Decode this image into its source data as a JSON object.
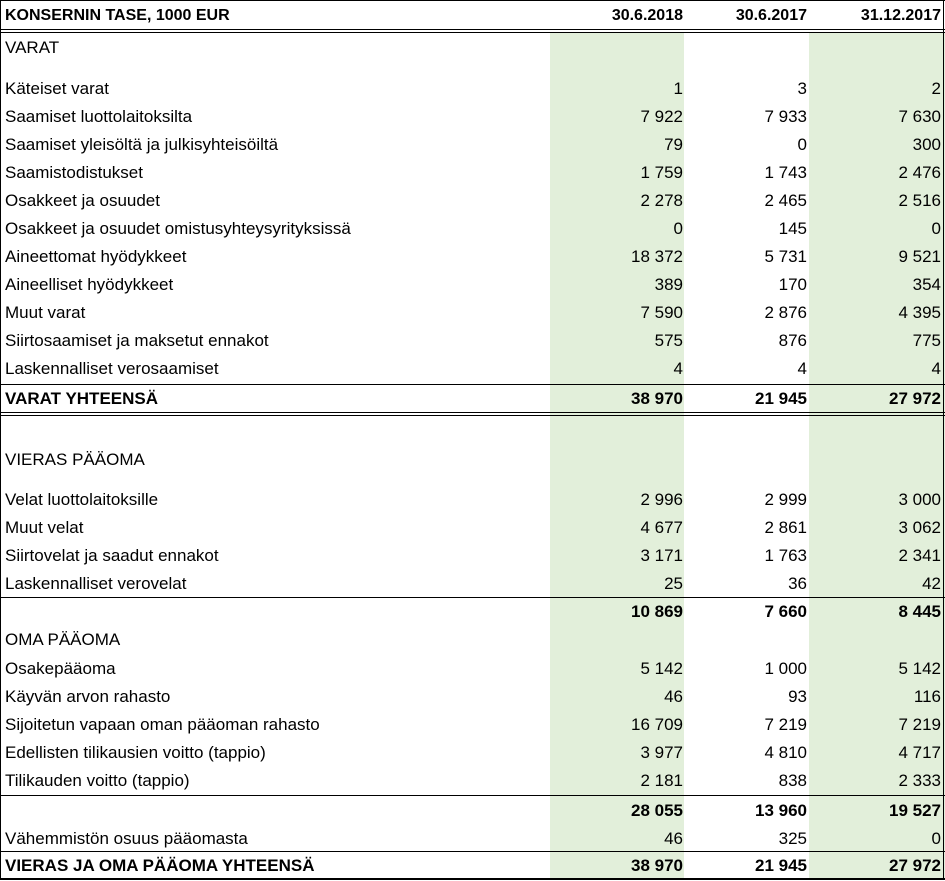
{
  "table": {
    "title": "KONSERNIN TASE, 1000 EUR",
    "columns": [
      "30.6.2018",
      "30.6.2017",
      "31.12.2017"
    ],
    "rows": [
      {
        "label": "VARAT",
        "values": [
          "",
          "",
          ""
        ],
        "style": "section"
      },
      {
        "label": "Käteiset varat",
        "values": [
          "1",
          "3",
          "2"
        ]
      },
      {
        "label": "Saamiset luottolaitoksilta",
        "values": [
          "7 922",
          "7 933",
          "7 630"
        ]
      },
      {
        "label": "Saamiset yleisöltä ja julkisyhteisöiltä",
        "values": [
          "79",
          "0",
          "300"
        ]
      },
      {
        "label": "Saamistodistukset",
        "values": [
          "1 759",
          "1 743",
          "2 476"
        ]
      },
      {
        "label": "Osakkeet ja osuudet",
        "values": [
          "2 278",
          "2 465",
          "2 516"
        ]
      },
      {
        "label": "Osakkeet ja osuudet omistusyhteysyrityksissä",
        "values": [
          "0",
          "145",
          "0"
        ]
      },
      {
        "label": "Aineettomat hyödykkeet",
        "values": [
          "18 372",
          "5 731",
          "9 521"
        ]
      },
      {
        "label": "Aineelliset hyödykkeet",
        "values": [
          "389",
          "170",
          "354"
        ]
      },
      {
        "label": "Muut varat",
        "values": [
          "7 590",
          "2 876",
          "4 395"
        ]
      },
      {
        "label": "Siirtosaamiset ja maksetut ennakot",
        "values": [
          "575",
          "876",
          "775"
        ]
      },
      {
        "label": "Laskennalliset verosaamiset",
        "values": [
          "4",
          "4",
          "4"
        ]
      },
      {
        "label": "VARAT YHTEENSÄ",
        "values": [
          "38 970",
          "21 945",
          "27 972"
        ],
        "style": "total"
      },
      {
        "label": "VIERAS PÄÄOMA",
        "values": [
          "",
          "",
          ""
        ],
        "style": "section"
      },
      {
        "label": "Velat luottolaitoksille",
        "values": [
          "2 996",
          "2 999",
          "3 000"
        ]
      },
      {
        "label": "Muut velat",
        "values": [
          "4 677",
          "2 861",
          "3 062"
        ]
      },
      {
        "label": "Siirtovelat ja saadut ennakot",
        "values": [
          "3 171",
          "1 763",
          "2 341"
        ]
      },
      {
        "label": "Laskennalliset verovelat",
        "values": [
          "25",
          "36",
          "42"
        ]
      },
      {
        "label": "",
        "values": [
          "10 869",
          "7 660",
          "8 445"
        ],
        "style": "total"
      },
      {
        "label": "OMA PÄÄOMA",
        "values": [
          "",
          "",
          ""
        ],
        "style": "section"
      },
      {
        "label": "Osakepääoma",
        "values": [
          "5 142",
          "1 000",
          "5 142"
        ]
      },
      {
        "label": "Käyvän arvon rahasto",
        "values": [
          "46",
          "93",
          "116"
        ]
      },
      {
        "label": "Sijoitetun vapaan oman pääoman rahasto",
        "values": [
          "16 709",
          "7 219",
          "7 219"
        ]
      },
      {
        "label": "Edellisten tilikausien voitto (tappio)",
        "values": [
          "3 977",
          "4 810",
          "4 717"
        ]
      },
      {
        "label": "Tilikauden voitto (tappio)",
        "values": [
          "2 181",
          "838",
          "2 333"
        ]
      },
      {
        "label": "",
        "values": [
          "28 055",
          "13 960",
          "19 527"
        ],
        "style": "total"
      },
      {
        "label": "Vähemmistön osuus pääomasta",
        "values": [
          "46",
          "325",
          "0"
        ]
      },
      {
        "label": "VIERAS JA OMA PÄÄOMA YHTEENSÄ",
        "values": [
          "38 970",
          "21 945",
          "27 972"
        ],
        "style": "total"
      }
    ],
    "shade_color": "#e2efda"
  }
}
